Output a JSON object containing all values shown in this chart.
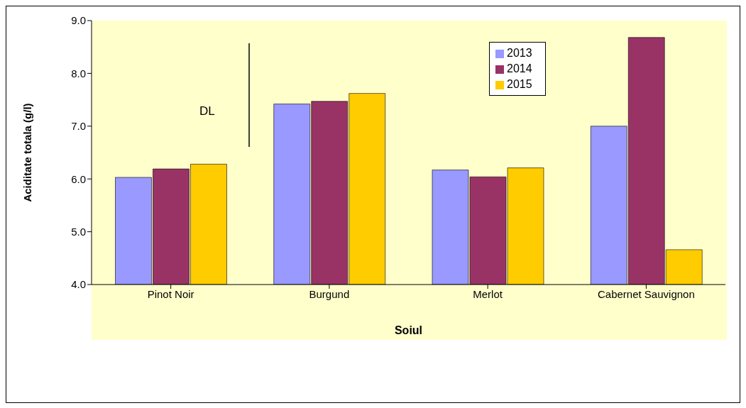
{
  "chart_data": {
    "type": "bar",
    "categories": [
      "Pinot Noir",
      "Burgund",
      "Merlot",
      "Cabernet Sauvignon"
    ],
    "series": [
      {
        "name": "2013",
        "color": "#9999ff",
        "values": [
          6.03,
          7.42,
          6.17,
          7.0
        ]
      },
      {
        "name": "2014",
        "color": "#993366",
        "values": [
          6.19,
          7.47,
          6.04,
          8.68
        ]
      },
      {
        "name": "2015",
        "color": "#ffcc00",
        "values": [
          6.28,
          7.62,
          6.21,
          4.66
        ]
      }
    ],
    "xlabel": "Soiul",
    "ylabel": "Aciditate totala (g/l)",
    "ylim": [
      4.0,
      9.0
    ],
    "yticks": [
      {
        "value": 4,
        "label": "4.0"
      },
      {
        "value": 5,
        "label": "5.0"
      },
      {
        "value": 6,
        "label": "6.0"
      },
      {
        "value": 7,
        "label": "7.0"
      },
      {
        "value": 8,
        "label": "8.0"
      },
      {
        "value": 9,
        "label": "9.0"
      }
    ],
    "annotations": [
      "DL"
    ],
    "legend": "top right",
    "grid": false
  }
}
